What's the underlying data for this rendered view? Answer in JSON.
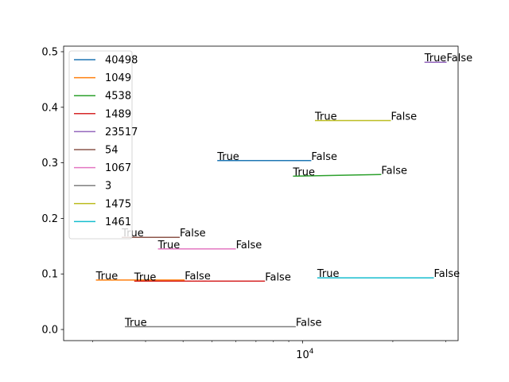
{
  "chart_data": {
    "type": "line",
    "title": "",
    "xlabel": "",
    "ylabel": "",
    "xscale": "log",
    "xlim": [
      1600,
      33000
    ],
    "ylim": [
      -0.02,
      0.51
    ],
    "x_ticks": [
      {
        "value": 10000,
        "base": "10",
        "exp": "4"
      }
    ],
    "x_minor_ticks": [
      2000,
      3000,
      4000,
      5000,
      6000,
      7000,
      8000,
      9000,
      20000,
      30000
    ],
    "y_ticks": [
      {
        "value": 0.0,
        "label": "0.0"
      },
      {
        "value": 0.1,
        "label": "0.1"
      },
      {
        "value": 0.2,
        "label": "0.2"
      },
      {
        "value": 0.3,
        "label": "0.3"
      },
      {
        "value": 0.4,
        "label": "0.4"
      },
      {
        "value": 0.5,
        "label": "0.5"
      }
    ],
    "grid": false,
    "legend": {
      "position": "upper-left"
    },
    "series": [
      {
        "name": "40498",
        "color": "#1f77b4",
        "x": [
          5200,
          10700
        ],
        "y": [
          0.304,
          0.304
        ],
        "labels": [
          "True",
          "False"
        ]
      },
      {
        "name": "1049",
        "color": "#ff7f0e",
        "x": [
          2050,
          4050
        ],
        "y": [
          0.089,
          0.089
        ],
        "labels": [
          "True",
          "False"
        ]
      },
      {
        "name": "4538",
        "color": "#2ca02c",
        "x": [
          9300,
          18300
        ],
        "y": [
          0.276,
          0.279
        ],
        "labels": [
          "True",
          "False"
        ]
      },
      {
        "name": "1489",
        "color": "#d62728",
        "x": [
          2750,
          7500
        ],
        "y": [
          0.087,
          0.087
        ],
        "labels": [
          "True",
          "False"
        ]
      },
      {
        "name": "23517",
        "color": "#9467bd",
        "x": [
          25500,
          30200
        ],
        "y": [
          0.481,
          0.481
        ],
        "labels": [
          "True",
          "False"
        ]
      },
      {
        "name": "54",
        "color": "#8c564b",
        "x": [
          2500,
          3900
        ],
        "y": [
          0.166,
          0.166
        ],
        "labels": [
          "True",
          "False"
        ]
      },
      {
        "name": "1067",
        "color": "#e377c2",
        "x": [
          3300,
          6000
        ],
        "y": [
          0.145,
          0.145
        ],
        "labels": [
          "True",
          "False"
        ]
      },
      {
        "name": "3",
        "color": "#7f7f7f",
        "x": [
          2560,
          9500
        ],
        "y": [
          0.005,
          0.005
        ],
        "labels": [
          "True",
          "False"
        ]
      },
      {
        "name": "1475",
        "color": "#bcbd22",
        "x": [
          11000,
          19700
        ],
        "y": [
          0.376,
          0.376
        ],
        "labels": [
          "True",
          "False"
        ]
      },
      {
        "name": "1461",
        "color": "#17becf",
        "x": [
          11200,
          27400
        ],
        "y": [
          0.093,
          0.093
        ],
        "labels": [
          "True",
          "False"
        ]
      }
    ]
  }
}
